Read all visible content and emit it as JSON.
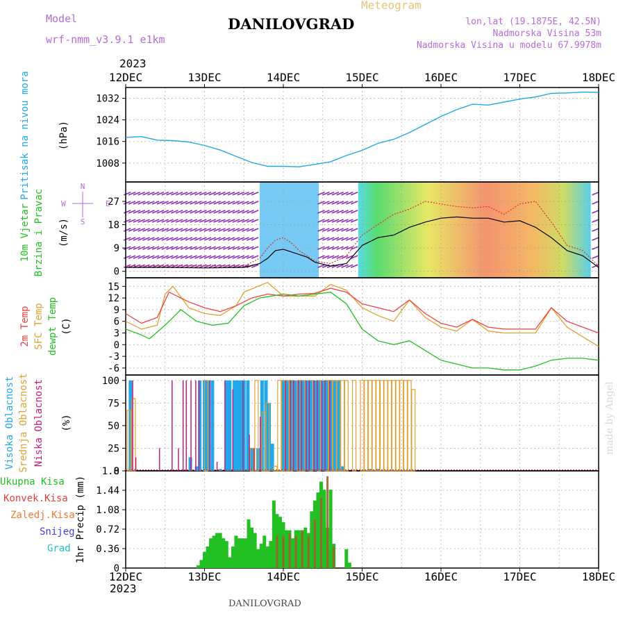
{
  "header": {
    "model_label": "Model",
    "model_value": "wrf-nmm_v3.9.1 e1km",
    "title": "DANILOVGRAD",
    "subtitle": "Meteogram",
    "lonlat": "lon,lat (19.1875E, 42.5N)",
    "elevation": "Nadmorska Visina 53m",
    "model_elevation": "Nadmorska Visina u modelu 67.9978m",
    "year_top": "2023",
    "year_bottom": "2023",
    "footer_station": "DANILOVGRAD",
    "credit": "made by Angel"
  },
  "colors": {
    "pressure": "#1fa8e6",
    "t2m": "#f04040",
    "sfc": "#e0a030",
    "dew": "#20c020",
    "high_cloud": "#20a8e8",
    "mid_cloud": "#e0a030",
    "low_cloud": "#c0207a",
    "precip_total": "#22c022",
    "precip_conv": "#e04040",
    "freezing": "#f07830",
    "snow": "#4040e0",
    "graupel": "#20c0c0",
    "violet": "#b86ad8"
  },
  "time_axis": {
    "labels": [
      "12DEC",
      "13DEC",
      "14DEC",
      "15DEC",
      "16DEC",
      "17DEC",
      "18DEC"
    ],
    "unit": "days since 12DEC"
  },
  "chart_data": [
    {
      "type": "line",
      "panel": "pressure",
      "ylabel_main": "Pritisak na nivou mora",
      "ylabel_unit": "(hPa)",
      "yticks": [
        1008,
        1016,
        1024,
        1032
      ],
      "ylim": [
        1001,
        1036
      ],
      "series": [
        {
          "name": "Pritisak na nivou mora",
          "x": [
            0,
            0.2,
            0.4,
            0.6,
            0.8,
            1.0,
            1.2,
            1.4,
            1.6,
            1.8,
            2.0,
            2.2,
            2.4,
            2.6,
            2.8,
            3.0,
            3.2,
            3.4,
            3.6,
            3.8,
            4.0,
            4.2,
            4.4,
            4.6,
            4.8,
            5.0,
            5.2,
            5.4,
            5.6,
            5.8,
            6.0
          ],
          "y": [
            1017.5,
            1017.8,
            1016.5,
            1016.3,
            1015.8,
            1014.5,
            1012.8,
            1010.5,
            1008.2,
            1006.8,
            1006.8,
            1006.6,
            1007.5,
            1008.5,
            1010.8,
            1012.7,
            1015.3,
            1016.8,
            1019.3,
            1022.3,
            1025.3,
            1027.8,
            1029.8,
            1029.5,
            1030.6,
            1031.7,
            1032.5,
            1033.8,
            1034.0,
            1034.3,
            1034.2
          ]
        }
      ]
    },
    {
      "type": "line",
      "panel": "wind",
      "ylabel_main": "10m Vjetar",
      "ylabel_sub": "Brzina i Pravac",
      "ylabel_unit": "(m/s)",
      "compass": {
        "n": "N",
        "e": "E",
        "w": "W",
        "s": "S"
      },
      "yticks": [
        0,
        9,
        18,
        27
      ],
      "ylim": [
        -2.5,
        34.5
      ],
      "series": [
        {
          "name": "wind-speed",
          "x": [
            0,
            0.5,
            1.0,
            1.5,
            1.7,
            1.8,
            1.9,
            2.0,
            2.1,
            2.2,
            2.3,
            2.4,
            2.6,
            2.8,
            3.0,
            3.2,
            3.4,
            3.6,
            3.8,
            4.0,
            4.2,
            4.4,
            4.6,
            4.8,
            5.0,
            5.2,
            5.4,
            5.6,
            5.8,
            6.0
          ],
          "y": [
            1.5,
            1.5,
            1.3,
            1.5,
            3,
            5,
            8,
            8.5,
            7.5,
            6.5,
            5.5,
            3.5,
            2,
            3,
            10,
            13,
            14,
            17,
            19,
            20.5,
            21,
            20.5,
            20.5,
            19,
            19.5,
            17,
            13,
            8,
            6,
            1.5
          ]
        },
        {
          "name": "wind-gust",
          "x": [
            0,
            0.5,
            1.0,
            1.5,
            1.7,
            1.8,
            1.9,
            2.0,
            2.1,
            2.2,
            2.3,
            2.4,
            2.6,
            2.8,
            3.0,
            3.2,
            3.4,
            3.6,
            3.8,
            4.0,
            4.2,
            4.4,
            4.6,
            4.8,
            5.0,
            5.2,
            5.4,
            5.6,
            5.8,
            6.0
          ],
          "y": [
            2,
            2.2,
            2.3,
            2,
            5,
            9,
            12,
            13,
            11,
            8,
            6,
            4,
            3,
            6,
            14,
            18,
            22,
            24,
            27,
            26,
            25,
            24.5,
            25,
            22,
            26,
            27,
            19,
            10,
            8,
            2
          ]
        }
      ]
    },
    {
      "type": "line",
      "panel": "temperature",
      "ylabel_main": "2m Temp",
      "ylabel_sub": "SFC Temp",
      "ylabel_sub2": "dewpt Temp",
      "ylabel_unit": "(C)",
      "yticks": [
        -6,
        -3,
        0,
        3,
        6,
        9,
        12,
        15
      ],
      "ylim": [
        -7.8,
        17.2
      ],
      "series": [
        {
          "name": "2m Temp",
          "x": [
            0,
            0.2,
            0.4,
            0.55,
            0.8,
            1.0,
            1.2,
            1.4,
            1.6,
            1.8,
            2.0,
            2.2,
            2.4,
            2.6,
            2.8,
            3.0,
            3.2,
            3.4,
            3.6,
            3.8,
            4.0,
            4.2,
            4.4,
            4.6,
            4.8,
            5.0,
            5.2,
            5.4,
            5.6,
            5.8,
            6.0
          ],
          "y": [
            8,
            5.5,
            7,
            13.5,
            11,
            9.5,
            8.5,
            10,
            12,
            13,
            12.5,
            13,
            13.2,
            14.5,
            13.5,
            10.5,
            9.5,
            8.5,
            11.5,
            8,
            5.5,
            4.5,
            6.5,
            4.5,
            4,
            4,
            4,
            9.5,
            6,
            4.5,
            3
          ]
        },
        {
          "name": "SFC Temp",
          "x": [
            0,
            0.2,
            0.4,
            0.5,
            0.6,
            0.8,
            1.0,
            1.2,
            1.4,
            1.5,
            1.8,
            2.0,
            2.2,
            2.4,
            2.6,
            2.8,
            3.0,
            3.2,
            3.4,
            3.6,
            3.8,
            4.0,
            4.2,
            4.4,
            4.6,
            4.8,
            5.0,
            5.2,
            5.4,
            5.6,
            5.8,
            6.0
          ],
          "y": [
            6,
            4,
            5,
            13,
            15,
            9.5,
            8,
            7.5,
            10,
            13.5,
            16,
            12.5,
            12.5,
            12.5,
            15.5,
            14,
            9.5,
            7.5,
            6,
            11.5,
            7,
            4.5,
            3.5,
            6.5,
            3.5,
            3,
            3,
            3,
            9.5,
            4.5,
            2,
            -0.5
          ]
        },
        {
          "name": "dewpt Temp",
          "x": [
            0,
            0.2,
            0.3,
            0.5,
            0.7,
            0.9,
            1.1,
            1.3,
            1.5,
            1.7,
            2.0,
            2.2,
            2.4,
            2.6,
            2.8,
            3.0,
            3.2,
            3.4,
            3.6,
            3.8,
            4.0,
            4.2,
            4.4,
            4.6,
            4.8,
            5.0,
            5.2,
            5.4,
            5.6,
            5.8,
            6.0
          ],
          "y": [
            4,
            2.5,
            1.5,
            5,
            9,
            6,
            5,
            5.5,
            10,
            12,
            13,
            12.5,
            13,
            13.5,
            10.5,
            4,
            1,
            0,
            1,
            -1.5,
            -4,
            -5,
            -6,
            -6,
            -6.5,
            -6.5,
            -5.5,
            -4,
            -3.5,
            -3.5,
            -4
          ]
        }
      ]
    },
    {
      "type": "bar",
      "panel": "clouds",
      "ylabel_main": "Visoka Oblacnost",
      "ylabel_sub": "Srednja Oblacnost",
      "ylabel_sub2": "Niska Oblacnost",
      "ylabel_unit": "(%)",
      "yticks": [
        0,
        25,
        50,
        75,
        100
      ],
      "ylim": [
        0,
        106
      ],
      "series": [
        {
          "name": "Visoka Oblacnost",
          "x": [
            0.06,
            0.82,
            0.9,
            0.94,
            1.0,
            1.04,
            1.1,
            1.2,
            1.28,
            1.32,
            1.38,
            1.42,
            1.46,
            1.5,
            1.55,
            1.6,
            1.68,
            1.73,
            1.78,
            1.82,
            1.86,
            2.0,
            2.05,
            2.1,
            2.15,
            2.2,
            2.25,
            2.3,
            2.35,
            2.4,
            2.45,
            2.5,
            2.55,
            2.6,
            2.65,
            2.7,
            2.75,
            3.1,
            3.2
          ],
          "y": [
            100,
            15,
            5,
            100,
            100,
            100,
            100,
            2,
            100,
            100,
            100,
            100,
            100,
            100,
            100,
            25,
            25,
            100,
            100,
            75,
            30,
            100,
            100,
            100,
            100,
            100,
            100,
            100,
            100,
            100,
            100,
            100,
            100,
            100,
            100,
            100,
            5,
            2,
            2
          ]
        },
        {
          "name": "Srednja Oblacnost",
          "x": [
            0.04,
            0.1,
            1.02,
            1.6,
            1.66,
            1.75,
            1.8,
            1.9,
            1.95,
            2.0,
            2.05,
            2.1,
            2.2,
            2.25,
            2.35,
            2.45,
            2.55,
            2.6,
            2.65,
            2.7,
            2.75,
            2.8,
            2.9,
            3.0,
            3.05,
            3.1,
            3.15,
            3.2,
            3.25,
            3.3,
            3.35,
            3.4,
            3.45,
            3.5,
            3.55,
            3.6,
            3.65
          ],
          "y": [
            67,
            80,
            100,
            25,
            100,
            65,
            75,
            5,
            100,
            100,
            100,
            100,
            100,
            100,
            100,
            100,
            100,
            100,
            100,
            100,
            100,
            100,
            100,
            100,
            100,
            100,
            100,
            100,
            100,
            100,
            100,
            100,
            100,
            100,
            100,
            100,
            90
          ]
        },
        {
          "name": "Niska Oblacnost",
          "x": [
            0.08,
            0.12,
            0.42,
            0.58,
            0.66,
            0.72,
            0.76,
            0.82,
            0.88,
            0.92,
            1.06,
            1.15,
            1.25,
            1.35,
            1.48,
            1.56,
            1.62,
            1.7,
            2.02,
            2.08,
            2.12,
            2.18,
            2.22,
            2.28,
            2.32,
            2.38,
            2.42,
            2.48,
            2.52,
            2.58
          ],
          "y": [
            100,
            15,
            25,
            100,
            25,
            100,
            100,
            100,
            100,
            100,
            100,
            10,
            100,
            90,
            100,
            40,
            25,
            60,
            100,
            100,
            100,
            100,
            100,
            100,
            100,
            100,
            100,
            100,
            100,
            100
          ]
        }
      ]
    },
    {
      "type": "bar",
      "panel": "precipitation",
      "legend": [
        "Ukupna Kisa",
        "Konvek.Kisa",
        "Zaledj.Kisa",
        "Snijeg",
        "Grad"
      ],
      "ylabel_main": "1hr Precip (mm)",
      "yticks": [
        0,
        0.36,
        0.72,
        1.08,
        1.44,
        1.8
      ],
      "ylim": [
        0,
        1.8
      ],
      "series": [
        {
          "name": "Ukupna Kisa",
          "x": [
            0.92,
            0.96,
            1.0,
            1.04,
            1.08,
            1.12,
            1.16,
            1.2,
            1.24,
            1.28,
            1.32,
            1.36,
            1.4,
            1.44,
            1.48,
            1.52,
            1.56,
            1.6,
            1.64,
            1.68,
            1.72,
            1.76,
            1.8,
            1.84,
            1.88,
            1.92,
            1.96,
            2.0,
            2.04,
            2.08,
            2.12,
            2.16,
            2.2,
            2.24,
            2.28,
            2.32,
            2.36,
            2.4,
            2.44,
            2.48,
            2.52,
            2.56,
            2.6,
            2.64,
            2.8,
            2.84
          ],
          "y": [
            0.05,
            0.15,
            0.3,
            0.4,
            0.55,
            0.6,
            0.65,
            0.65,
            0.55,
            0.5,
            0.2,
            0.4,
            0.6,
            0.55,
            0.55,
            0.55,
            0.9,
            0.75,
            0.65,
            0.35,
            0.45,
            0.6,
            0.4,
            0.5,
            1.25,
            1.0,
            0.95,
            0.85,
            0.7,
            0.7,
            0.55,
            0.7,
            0.7,
            0.7,
            0.75,
            0.65,
            1.05,
            1.25,
            1.4,
            1.6,
            1.45,
            0.75,
            1.45,
            0.45,
            0.35,
            0.1
          ]
        },
        {
          "name": "Konvek.Kisa",
          "x": [
            1.92,
            2.0,
            2.08,
            2.16,
            2.24,
            2.32,
            2.4,
            2.48,
            2.56,
            2.64
          ],
          "y": [
            0.6,
            0.6,
            0.65,
            0.6,
            0.7,
            0.6,
            0.9,
            1.3,
            1.7,
            0.4
          ]
        },
        {
          "name": "Zaledj.Kisa",
          "x": [],
          "y": []
        },
        {
          "name": "Snijeg",
          "x": [],
          "y": []
        },
        {
          "name": "Grad",
          "x": [],
          "y": []
        }
      ]
    }
  ]
}
